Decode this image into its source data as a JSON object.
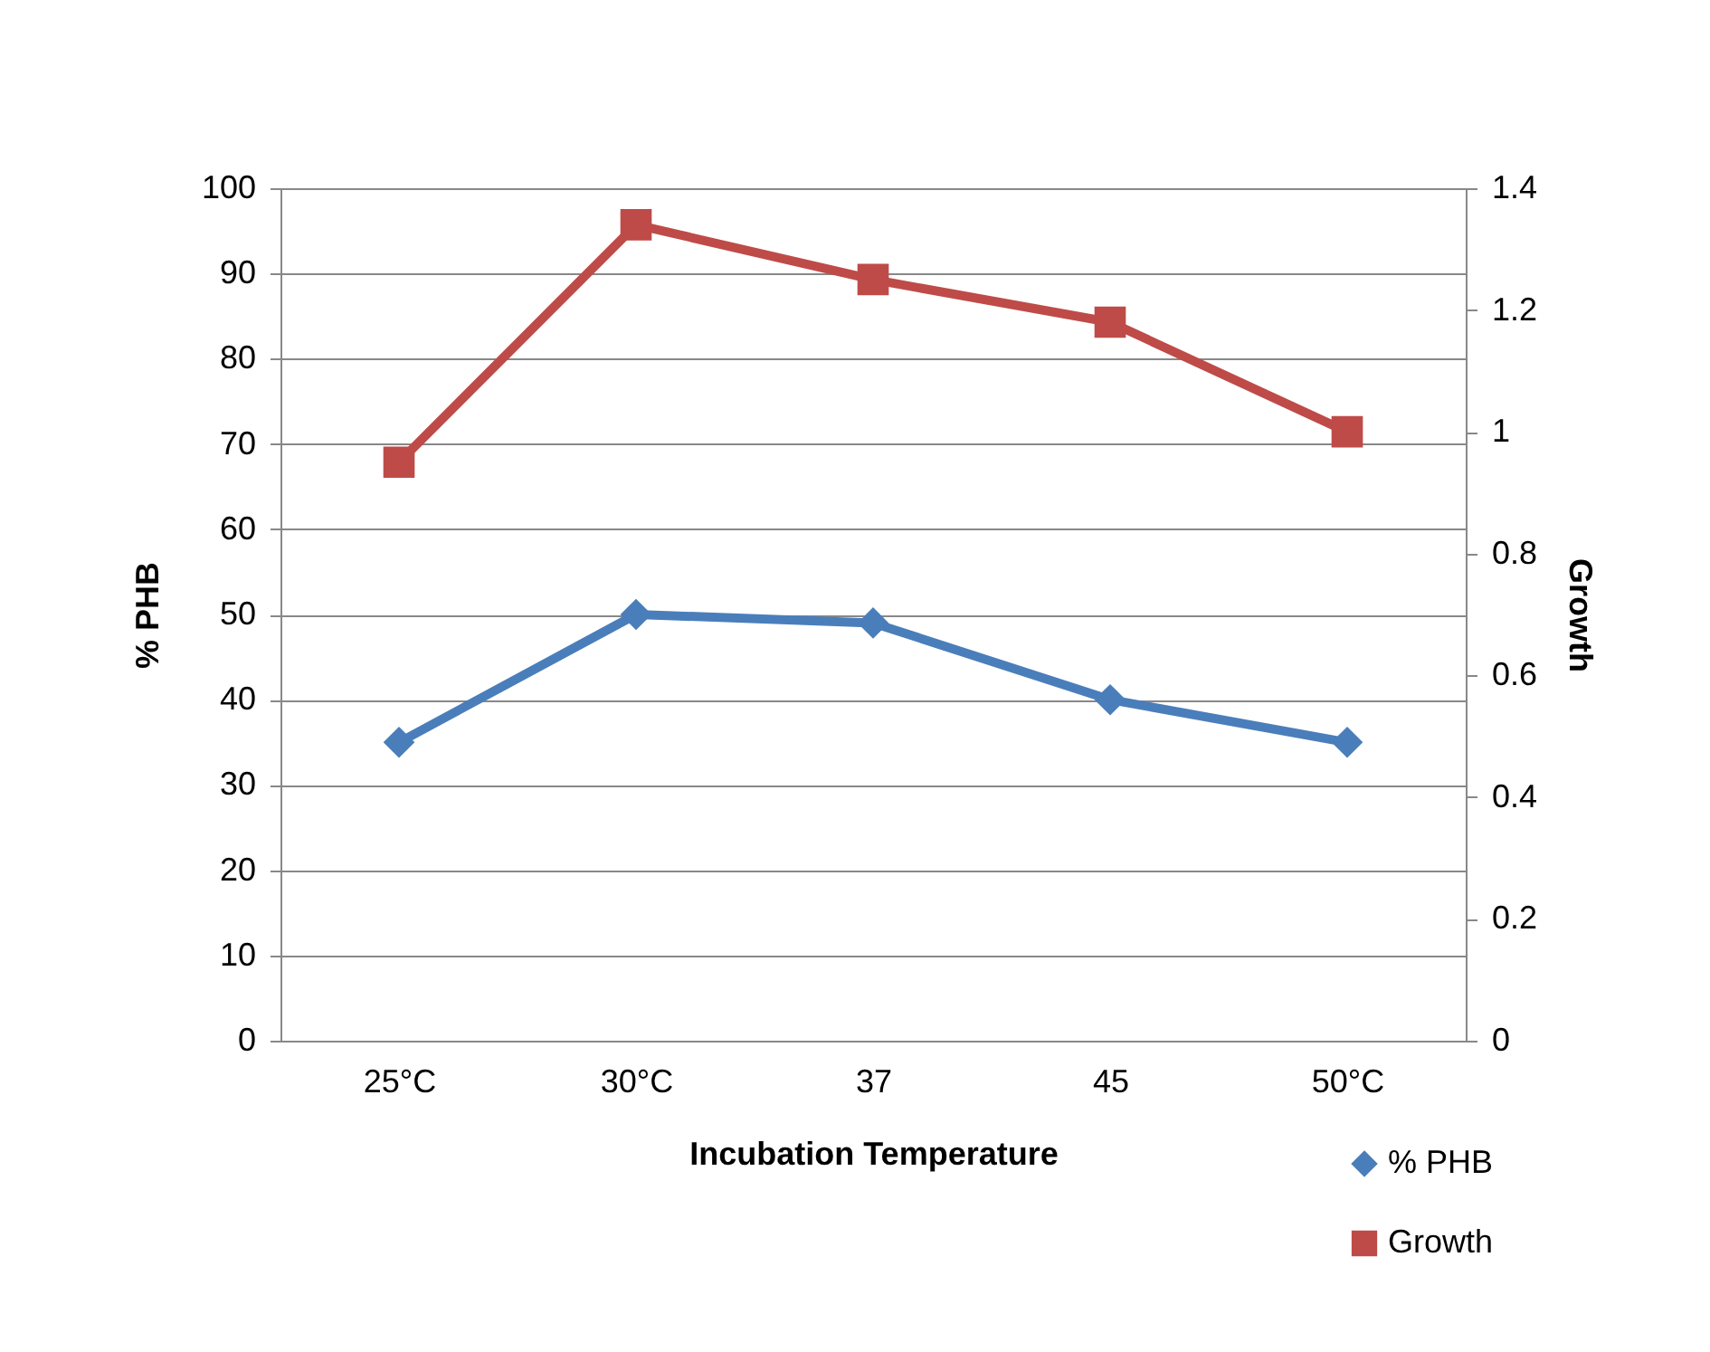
{
  "chart_data": {
    "type": "line",
    "xlabel": "Incubation Temperature",
    "ylabel": "% PHB",
    "y2label": "Growth",
    "categories": [
      "25°C",
      "30°C",
      "37",
      "45",
      "50°C"
    ],
    "series": [
      {
        "name": "% PHB",
        "color": "#4a7ebb",
        "values": [
          35,
          50,
          49,
          40,
          35
        ],
        "marker": "diamond"
      },
      {
        "name": "Growth",
        "color": "#be4b48",
        "values": [
          0.95,
          1.34,
          1.25,
          1.18,
          1.0
        ],
        "axis": "y2",
        "marker": "square"
      }
    ],
    "ylim": [
      0,
      100
    ],
    "yticks": [
      0,
      10,
      20,
      30,
      40,
      50,
      60,
      70,
      80,
      90,
      100
    ],
    "y2lim": [
      0,
      1.4
    ],
    "y2ticks": [
      {
        "value": 0,
        "label": "0"
      },
      0.2,
      0.4,
      0.6,
      0.8,
      {
        "value": 1,
        "label": "1"
      },
      1.2,
      1.4
    ],
    "grid": "y",
    "legend": "bottom right"
  }
}
